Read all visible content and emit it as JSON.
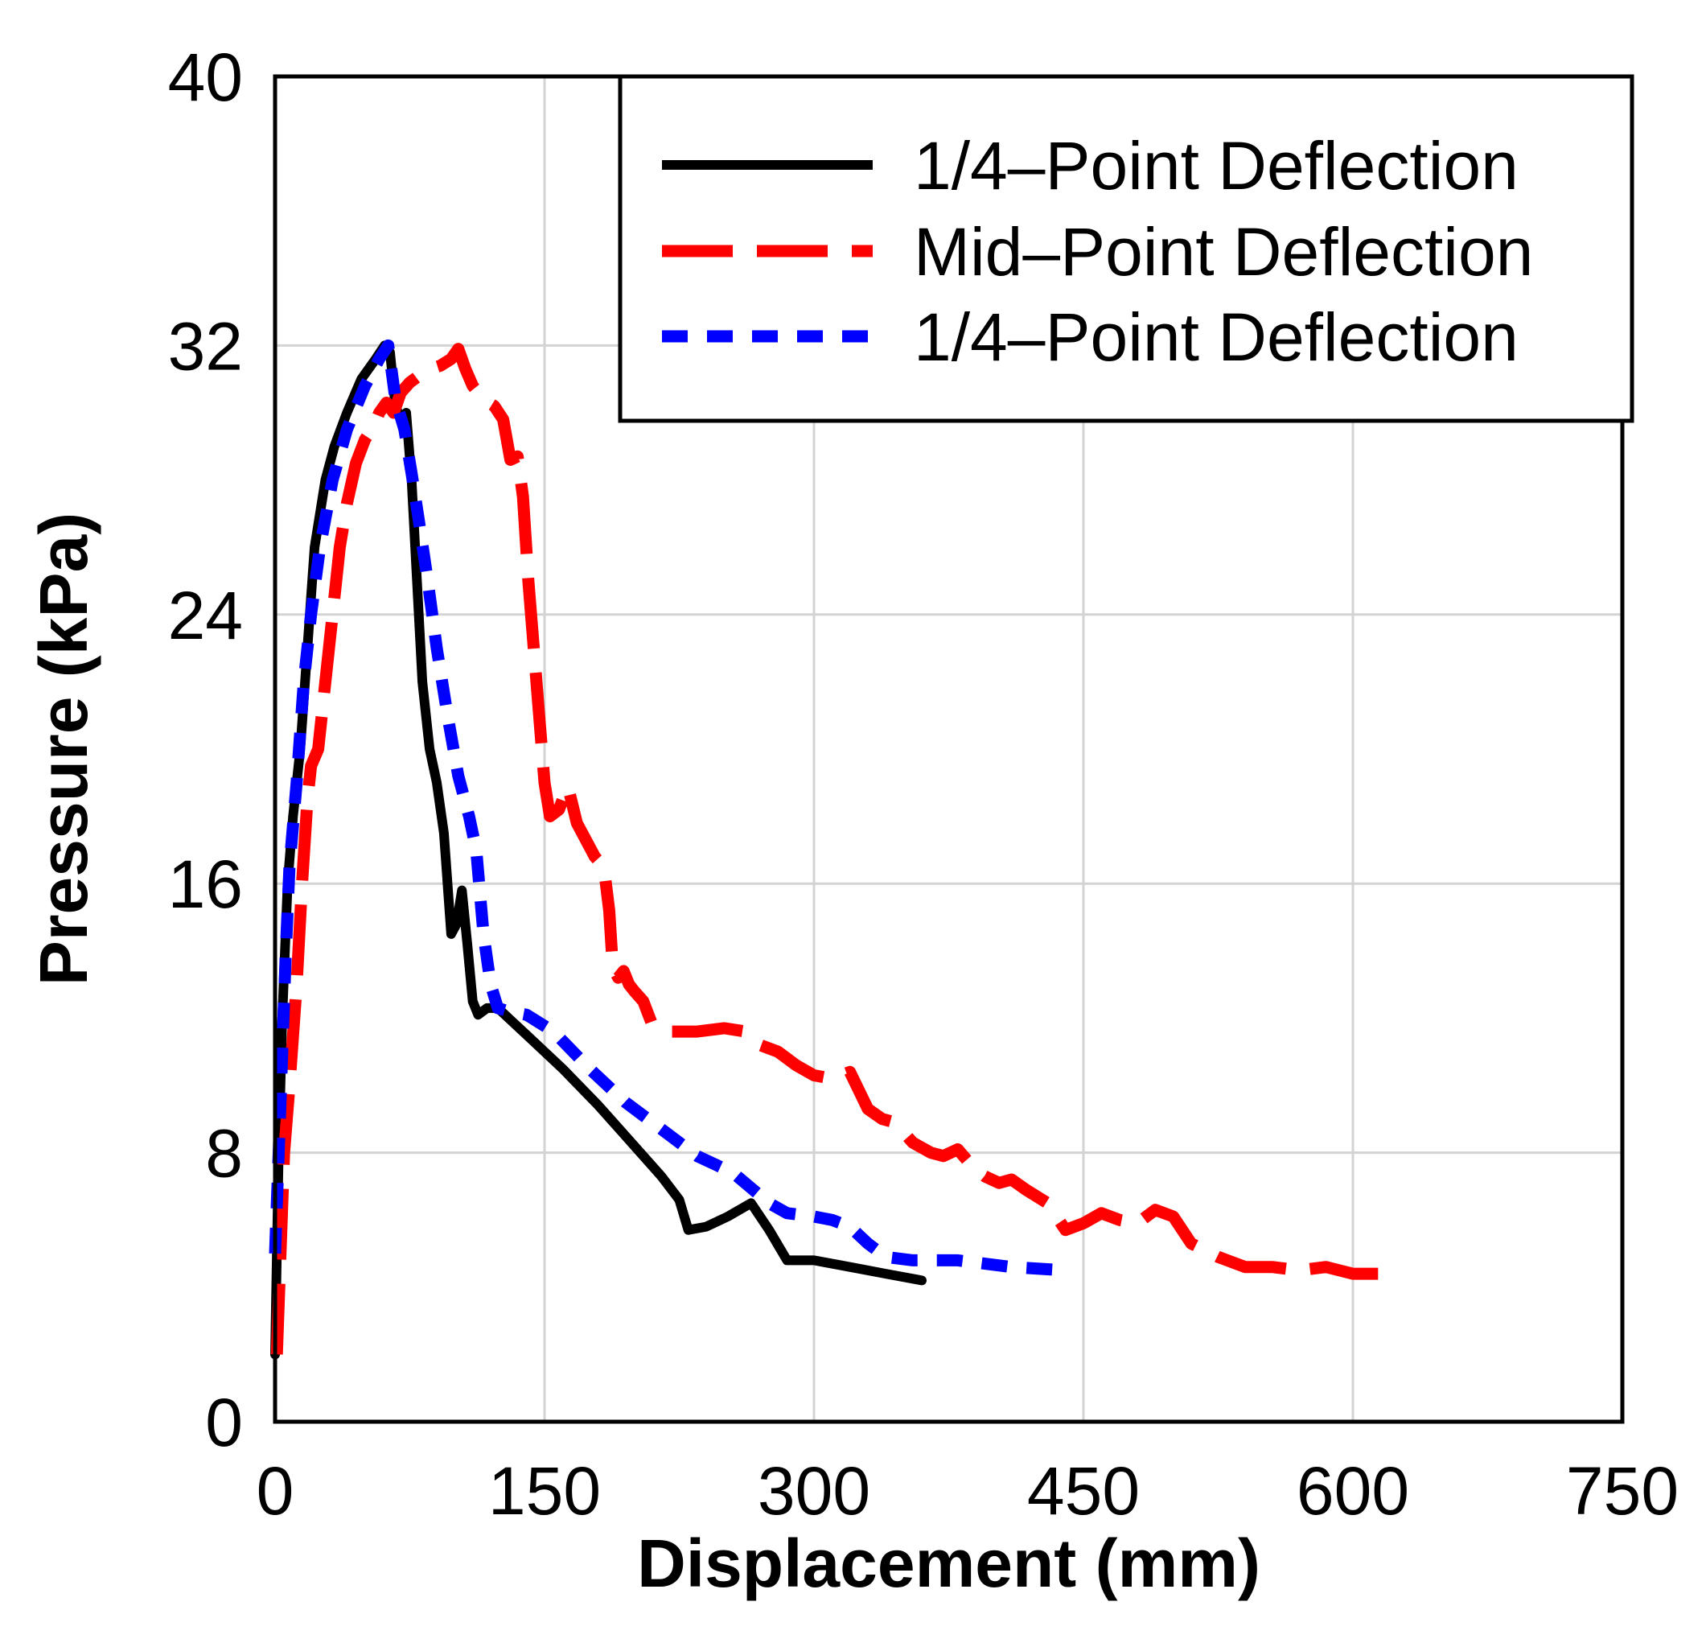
{
  "chart_data": {
    "type": "line",
    "title": "",
    "xlabel": "Displacement (mm)",
    "ylabel": "Pressure (kPa)",
    "xlim": [
      0,
      750
    ],
    "ylim": [
      0,
      40
    ],
    "x_ticks": [
      "0",
      "150",
      "300",
      "450",
      "600",
      "750"
    ],
    "y_ticks": [
      "0",
      "8",
      "16",
      "24",
      "32",
      "40"
    ],
    "x_tick_values": [
      0,
      150,
      300,
      450,
      600,
      750
    ],
    "y_tick_values": [
      0,
      8,
      16,
      24,
      32,
      40
    ],
    "grid": true,
    "legend_position": "top-right",
    "series": [
      {
        "name": "1/4–Point Deflection",
        "color": "#000000",
        "style": "solid",
        "points": [
          [
            0,
            2
          ],
          [
            1,
            5
          ],
          [
            2,
            8
          ],
          [
            4,
            12
          ],
          [
            7,
            16
          ],
          [
            10,
            18
          ],
          [
            14,
            20
          ],
          [
            18,
            23
          ],
          [
            22,
            26
          ],
          [
            28,
            28
          ],
          [
            33,
            29
          ],
          [
            40,
            30
          ],
          [
            48,
            31
          ],
          [
            56,
            31.6
          ],
          [
            61,
            32
          ],
          [
            64,
            31.8
          ],
          [
            67,
            30.2
          ],
          [
            70,
            29.8
          ],
          [
            73,
            30
          ],
          [
            76,
            28
          ],
          [
            79,
            25
          ],
          [
            82,
            22
          ],
          [
            86,
            20
          ],
          [
            90,
            19
          ],
          [
            94,
            17.5
          ],
          [
            96,
            16
          ],
          [
            98,
            14.5
          ],
          [
            101,
            14.8
          ],
          [
            104,
            15.8
          ],
          [
            107,
            14.2
          ],
          [
            110,
            12.5
          ],
          [
            113,
            12.1
          ],
          [
            118,
            12.3
          ],
          [
            124,
            12.3
          ],
          [
            140,
            11.5
          ],
          [
            160,
            10.5
          ],
          [
            180,
            9.4
          ],
          [
            200,
            8.2
          ],
          [
            215,
            7.3
          ],
          [
            225,
            6.6
          ],
          [
            230,
            5.7
          ],
          [
            240,
            5.8
          ],
          [
            252,
            6.1
          ],
          [
            265,
            6.5
          ],
          [
            275,
            5.7
          ],
          [
            285,
            4.8
          ],
          [
            300,
            4.8
          ],
          [
            320,
            4.6
          ],
          [
            340,
            4.4
          ],
          [
            360,
            4.2
          ]
        ]
      },
      {
        "name": "Mid–Point Deflection",
        "color": "#ff0000",
        "style": "dashed",
        "points": [
          [
            1,
            2
          ],
          [
            3,
            5
          ],
          [
            5,
            8
          ],
          [
            8,
            10
          ],
          [
            12,
            13
          ],
          [
            15,
            16
          ],
          [
            18,
            18.5
          ],
          [
            20,
            19.5
          ],
          [
            24,
            20
          ],
          [
            28,
            22
          ],
          [
            32,
            24
          ],
          [
            36,
            26
          ],
          [
            40,
            27.3
          ],
          [
            45,
            28.5
          ],
          [
            50,
            29.2
          ],
          [
            55,
            29.6
          ],
          [
            58,
            30
          ],
          [
            62,
            30.3
          ],
          [
            66,
            30
          ],
          [
            70,
            30.6
          ],
          [
            75,
            30.9
          ],
          [
            80,
            31.1
          ],
          [
            86,
            31.3
          ],
          [
            92,
            31.4
          ],
          [
            98,
            31.6
          ],
          [
            102,
            31.9
          ],
          [
            106,
            31.3
          ],
          [
            110,
            30.8
          ],
          [
            116,
            30.4
          ],
          [
            122,
            30.2
          ],
          [
            127,
            29.8
          ],
          [
            131,
            28.6
          ],
          [
            135,
            28.7
          ],
          [
            138,
            27.5
          ],
          [
            141,
            25
          ],
          [
            144,
            23
          ],
          [
            147,
            21
          ],
          [
            150,
            19
          ],
          [
            153,
            18
          ],
          [
            158,
            18.2
          ],
          [
            163,
            18.9
          ],
          [
            168,
            17.8
          ],
          [
            173,
            17.3
          ],
          [
            178,
            16.8
          ],
          [
            183,
            16.5
          ],
          [
            186,
            15.2
          ],
          [
            188,
            13.5
          ],
          [
            191,
            13.2
          ],
          [
            194,
            13.4
          ],
          [
            197,
            13
          ],
          [
            200,
            12.8
          ],
          [
            205,
            12.5
          ],
          [
            210,
            11.8
          ],
          [
            220,
            11.6
          ],
          [
            235,
            11.6
          ],
          [
            250,
            11.7
          ],
          [
            262,
            11.6
          ],
          [
            270,
            11.2
          ],
          [
            280,
            11
          ],
          [
            290,
            10.6
          ],
          [
            300,
            10.3
          ],
          [
            310,
            10.2
          ],
          [
            320,
            10.4
          ],
          [
            330,
            9.3
          ],
          [
            338,
            9
          ],
          [
            345,
            8.9
          ],
          [
            355,
            8.3
          ],
          [
            365,
            8
          ],
          [
            372,
            7.9
          ],
          [
            380,
            8.1
          ],
          [
            388,
            7.6
          ],
          [
            395,
            7.3
          ],
          [
            403,
            7.1
          ],
          [
            410,
            7.2
          ],
          [
            418,
            6.9
          ],
          [
            430,
            6.5
          ],
          [
            440,
            5.7
          ],
          [
            450,
            5.9
          ],
          [
            460,
            6.2
          ],
          [
            470,
            6
          ],
          [
            480,
            5.9
          ],
          [
            490,
            6.3
          ],
          [
            500,
            6.1
          ],
          [
            510,
            5.3
          ],
          [
            525,
            4.9
          ],
          [
            540,
            4.6
          ],
          [
            555,
            4.6
          ],
          [
            570,
            4.5
          ],
          [
            585,
            4.6
          ],
          [
            600,
            4.4
          ],
          [
            614,
            4.4
          ]
        ]
      },
      {
        "name": "1/4–Point Deflection",
        "color": "#0000ff",
        "style": "dotted",
        "points": [
          [
            0,
            5
          ],
          [
            1,
            6.5
          ],
          [
            2,
            8
          ],
          [
            4,
            11
          ],
          [
            6,
            14
          ],
          [
            8,
            16.5
          ],
          [
            12,
            19
          ],
          [
            16,
            22
          ],
          [
            20,
            24
          ],
          [
            25,
            26
          ],
          [
            32,
            28
          ],
          [
            40,
            29.5
          ],
          [
            50,
            30.8
          ],
          [
            58,
            31.6
          ],
          [
            63,
            32
          ],
          [
            67,
            30.4
          ],
          [
            72,
            29.5
          ],
          [
            76,
            28.2
          ],
          [
            80,
            26.8
          ],
          [
            85,
            25
          ],
          [
            90,
            23
          ],
          [
            96,
            21
          ],
          [
            102,
            19.2
          ],
          [
            108,
            18
          ],
          [
            112,
            17
          ],
          [
            116,
            14.5
          ],
          [
            120,
            13
          ],
          [
            124,
            12.3
          ],
          [
            130,
            12.2
          ],
          [
            140,
            12.1
          ],
          [
            155,
            11.6
          ],
          [
            175,
            10.5
          ],
          [
            195,
            9.5
          ],
          [
            215,
            8.7
          ],
          [
            235,
            7.9
          ],
          [
            255,
            7.4
          ],
          [
            275,
            6.5
          ],
          [
            285,
            6.2
          ],
          [
            300,
            6.1
          ],
          [
            310,
            6
          ],
          [
            320,
            5.8
          ],
          [
            330,
            5.3
          ],
          [
            340,
            4.9
          ],
          [
            355,
            4.8
          ],
          [
            380,
            4.8
          ],
          [
            410,
            4.6
          ],
          [
            440,
            4.5
          ]
        ]
      }
    ]
  }
}
